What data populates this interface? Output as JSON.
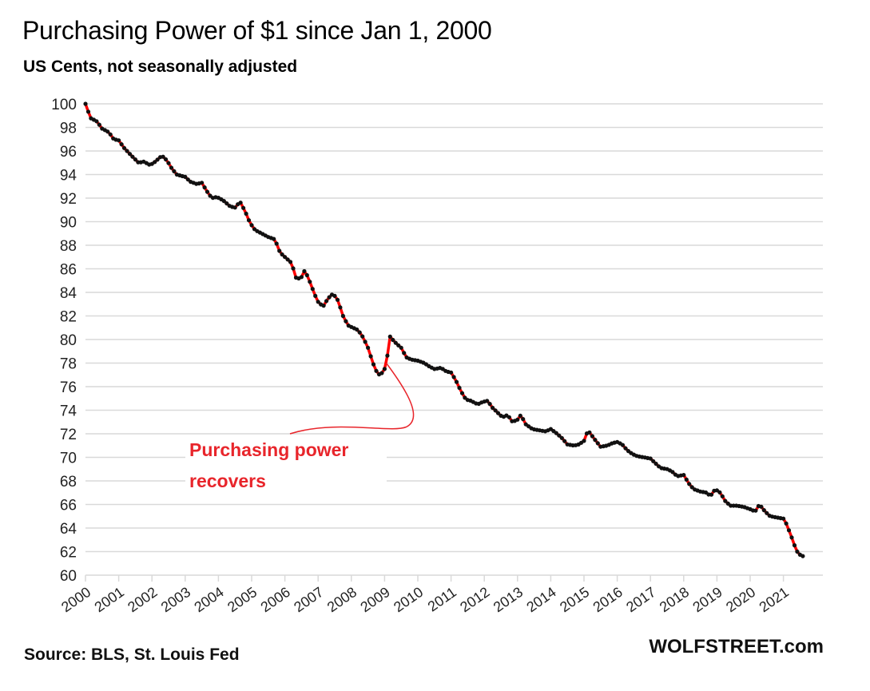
{
  "header": {
    "title": "Purchasing  Power of $1 since Jan 1, 2000",
    "subtitle": "US Cents, not seasonally adjusted"
  },
  "footer": {
    "source": "Source: BLS, St. Louis Fed",
    "brand": "WOLFSTREET.com"
  },
  "colors": {
    "line": "#ff0000",
    "marker": "#111111",
    "annotation": "#e8252b",
    "grid": "#d9d9d9"
  },
  "chart_data": {
    "type": "line",
    "title": "Purchasing  Power of $1 since Jan 1, 2000",
    "subtitle": "US Cents, not seasonally adjusted",
    "xlabel": "",
    "ylabel": "US Cents",
    "ylim": [
      60,
      100
    ],
    "yticks": [
      60,
      62,
      64,
      66,
      68,
      70,
      72,
      74,
      76,
      78,
      80,
      82,
      84,
      86,
      88,
      90,
      92,
      94,
      96,
      98,
      100
    ],
    "xlim": [
      2000,
      2021.6
    ],
    "xticks": [
      "2000",
      "2001",
      "2002",
      "2003",
      "2004",
      "2005",
      "2006",
      "2007",
      "2008",
      "2009",
      "2010",
      "2011",
      "2012",
      "2013",
      "2014",
      "2015",
      "2016",
      "2017",
      "2018",
      "2019",
      "2020",
      "2021"
    ],
    "grid": true,
    "legend": "none",
    "series": [
      {
        "name": "Purchasing power of $1",
        "keypoints": [
          [
            2000.0,
            100.0
          ],
          [
            2000.15,
            98.8
          ],
          [
            2000.35,
            98.5
          ],
          [
            2000.5,
            97.9
          ],
          [
            2000.7,
            97.6
          ],
          [
            2000.85,
            97.0
          ],
          [
            2001.0,
            96.9
          ],
          [
            2001.15,
            96.3
          ],
          [
            2001.35,
            95.7
          ],
          [
            2001.6,
            95.0
          ],
          [
            2001.75,
            95.1
          ],
          [
            2001.95,
            94.8
          ],
          [
            2002.1,
            95.1
          ],
          [
            2002.3,
            95.6
          ],
          [
            2002.45,
            95.2
          ],
          [
            2002.6,
            94.5
          ],
          [
            2002.75,
            94.0
          ],
          [
            2003.0,
            93.8
          ],
          [
            2003.15,
            93.4
          ],
          [
            2003.35,
            93.2
          ],
          [
            2003.5,
            93.3
          ],
          [
            2003.65,
            92.6
          ],
          [
            2003.8,
            92.0
          ],
          [
            2003.95,
            92.1
          ],
          [
            2004.15,
            91.8
          ],
          [
            2004.35,
            91.3
          ],
          [
            2004.5,
            91.2
          ],
          [
            2004.65,
            91.7
          ],
          [
            2004.8,
            90.9
          ],
          [
            2004.95,
            89.9
          ],
          [
            2005.1,
            89.3
          ],
          [
            2005.3,
            89.0
          ],
          [
            2005.5,
            88.7
          ],
          [
            2005.7,
            88.5
          ],
          [
            2005.85,
            87.4
          ],
          [
            2006.0,
            87.0
          ],
          [
            2006.2,
            86.5
          ],
          [
            2006.35,
            85.1
          ],
          [
            2006.5,
            85.3
          ],
          [
            2006.6,
            85.9
          ],
          [
            2006.75,
            84.9
          ],
          [
            2006.9,
            83.8
          ],
          [
            2007.0,
            83.2
          ],
          [
            2007.15,
            82.8
          ],
          [
            2007.3,
            83.5
          ],
          [
            2007.45,
            83.9
          ],
          [
            2007.6,
            83.3
          ],
          [
            2007.75,
            82.0
          ],
          [
            2007.9,
            81.2
          ],
          [
            2008.05,
            81.0
          ],
          [
            2008.2,
            80.8
          ],
          [
            2008.35,
            80.2
          ],
          [
            2008.5,
            79.3
          ],
          [
            2008.65,
            78.0
          ],
          [
            2008.8,
            77.0
          ],
          [
            2008.95,
            77.2
          ],
          [
            2009.05,
            77.8
          ],
          [
            2009.15,
            80.3
          ],
          [
            2009.3,
            79.8
          ],
          [
            2009.5,
            79.3
          ],
          [
            2009.65,
            78.5
          ],
          [
            2009.8,
            78.3
          ],
          [
            2010.0,
            78.2
          ],
          [
            2010.2,
            78.0
          ],
          [
            2010.35,
            77.7
          ],
          [
            2010.5,
            77.5
          ],
          [
            2010.7,
            77.6
          ],
          [
            2010.85,
            77.3
          ],
          [
            2011.0,
            77.2
          ],
          [
            2011.15,
            76.5
          ],
          [
            2011.3,
            75.6
          ],
          [
            2011.45,
            74.9
          ],
          [
            2011.6,
            74.8
          ],
          [
            2011.8,
            74.5
          ],
          [
            2011.95,
            74.7
          ],
          [
            2012.1,
            74.8
          ],
          [
            2012.25,
            74.2
          ],
          [
            2012.4,
            73.8
          ],
          [
            2012.55,
            73.4
          ],
          [
            2012.7,
            73.6
          ],
          [
            2012.85,
            73.0
          ],
          [
            2013.0,
            73.2
          ],
          [
            2013.1,
            73.6
          ],
          [
            2013.25,
            72.8
          ],
          [
            2013.45,
            72.4
          ],
          [
            2013.65,
            72.3
          ],
          [
            2013.85,
            72.2
          ],
          [
            2014.0,
            72.4
          ],
          [
            2014.15,
            72.1
          ],
          [
            2014.35,
            71.6
          ],
          [
            2014.5,
            71.1
          ],
          [
            2014.7,
            71.0
          ],
          [
            2014.85,
            71.1
          ],
          [
            2015.0,
            71.4
          ],
          [
            2015.12,
            72.3
          ],
          [
            2015.3,
            71.6
          ],
          [
            2015.5,
            70.9
          ],
          [
            2015.7,
            71.0
          ],
          [
            2015.85,
            71.2
          ],
          [
            2016.0,
            71.3
          ],
          [
            2016.15,
            71.1
          ],
          [
            2016.3,
            70.6
          ],
          [
            2016.45,
            70.3
          ],
          [
            2016.6,
            70.1
          ],
          [
            2016.8,
            70.0
          ],
          [
            2017.0,
            69.9
          ],
          [
            2017.15,
            69.5
          ],
          [
            2017.3,
            69.1
          ],
          [
            2017.5,
            69.0
          ],
          [
            2017.65,
            68.8
          ],
          [
            2017.8,
            68.4
          ],
          [
            2018.0,
            68.5
          ],
          [
            2018.15,
            67.8
          ],
          [
            2018.3,
            67.3
          ],
          [
            2018.5,
            67.1
          ],
          [
            2018.7,
            67.0
          ],
          [
            2018.8,
            66.7
          ],
          [
            2018.95,
            67.3
          ],
          [
            2019.1,
            67.0
          ],
          [
            2019.25,
            66.3
          ],
          [
            2019.4,
            65.9
          ],
          [
            2019.6,
            65.9
          ],
          [
            2019.8,
            65.8
          ],
          [
            2020.0,
            65.6
          ],
          [
            2020.15,
            65.4
          ],
          [
            2020.28,
            66.0
          ],
          [
            2020.45,
            65.4
          ],
          [
            2020.6,
            65.0
          ],
          [
            2020.8,
            64.9
          ],
          [
            2021.0,
            64.8
          ],
          [
            2021.1,
            64.3
          ],
          [
            2021.25,
            63.2
          ],
          [
            2021.35,
            62.4
          ],
          [
            2021.45,
            61.8
          ],
          [
            2021.6,
            61.6
          ]
        ]
      }
    ],
    "annotations": [
      {
        "text_line1": "Purchasing power",
        "text_line2": "recovers",
        "points_to": [
          2009.05,
          78.0
        ]
      }
    ]
  }
}
